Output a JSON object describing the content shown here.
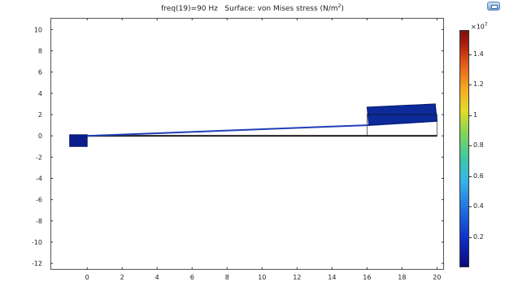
{
  "title": {
    "prefix": "freq(19)=90 Hz   Surface: von Mises stress (N/m",
    "exponent": "2",
    "suffix": ")"
  },
  "toolbar": {
    "corner_icon": "window-icon"
  },
  "colorbar": {
    "multiplier_prefix": "×10",
    "multiplier_exponent": "7",
    "ticks": [
      {
        "label": "1.4",
        "value": 1.4
      },
      {
        "label": "1.2",
        "value": 1.2
      },
      {
        "label": "1",
        "value": 1.0
      },
      {
        "label": "0.8",
        "value": 0.8
      },
      {
        "label": "0.6",
        "value": 0.6
      },
      {
        "label": "0.4",
        "value": 0.4
      },
      {
        "label": "0.2",
        "value": 0.2
      }
    ],
    "range": [
      0,
      1.56
    ],
    "colors": [
      "#0a0a7a",
      "#35b4e8",
      "#7ed35a",
      "#e2dc2a",
      "#f5a623",
      "#7a0f0f"
    ]
  },
  "chart_data": {
    "type": "surface",
    "title": "freq(19)=90 Hz   Surface: von Mises stress (N/m2)",
    "xlim": [
      -2.1,
      20.4
    ],
    "ylim": [
      -12.6,
      11.1
    ],
    "x_ticks": [
      "0",
      "2",
      "4",
      "6",
      "8",
      "10",
      "12",
      "14",
      "16",
      "18",
      "20"
    ],
    "y_ticks": [
      "10",
      "8",
      "6",
      "4",
      "2",
      "0",
      "-2",
      "-4",
      "-6",
      "-8",
      "-10",
      "-12"
    ],
    "undeformed_beam": [
      [
        -1,
        0
      ],
      [
        20,
        0
      ]
    ],
    "deformed_beam": [
      [
        0,
        0
      ],
      [
        16,
        1.0
      ],
      [
        20,
        1.4
      ]
    ],
    "shapes": [
      {
        "name": "base-block",
        "points": [
          [
            -1.0,
            0.1
          ],
          [
            0.0,
            0.1
          ],
          [
            0.0,
            -1.0
          ],
          [
            -1.0,
            -1.0
          ]
        ]
      },
      {
        "name": "tip-mass-deformed",
        "points": [
          [
            16.0,
            2.7
          ],
          [
            19.9,
            3.0
          ],
          [
            20.0,
            1.4
          ],
          [
            16.1,
            1.0
          ]
        ]
      },
      {
        "name": "tip-mass-undeformed",
        "points": [
          [
            16.0,
            2.0
          ],
          [
            20.0,
            2.0
          ],
          [
            20.0,
            0.0
          ],
          [
            16.0,
            0.0
          ]
        ]
      }
    ],
    "grid": false
  }
}
